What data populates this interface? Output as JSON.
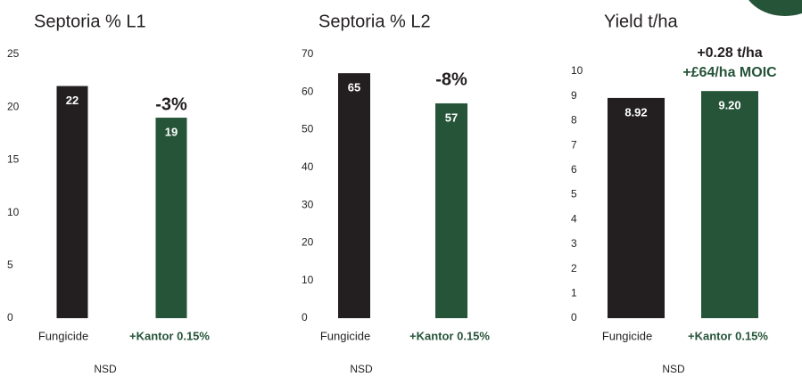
{
  "chart_data": [
    {
      "type": "bar",
      "title": "Septoria % L1",
      "categories": [
        "Fungicide",
        "+Kantor 0.15%"
      ],
      "values": [
        22,
        19
      ],
      "colors": [
        "#231f20",
        "#265439"
      ],
      "ylim": [
        0,
        25
      ],
      "yticks": [
        0,
        5,
        10,
        15,
        20,
        25
      ],
      "annotations": [
        "-3%"
      ],
      "footnote": "NSD"
    },
    {
      "type": "bar",
      "title": "Septoria % L2",
      "categories": [
        "Fungicide",
        "+Kantor 0.15%"
      ],
      "values": [
        65,
        57
      ],
      "colors": [
        "#231f20",
        "#265439"
      ],
      "ylim": [
        0,
        70
      ],
      "yticks": [
        0,
        10,
        20,
        30,
        40,
        50,
        60,
        70
      ],
      "annotations": [
        "-8%"
      ],
      "footnote": "NSD"
    },
    {
      "type": "bar",
      "title": "Yield t/ha",
      "categories": [
        "Fungicide",
        "+Kantor 0.15%"
      ],
      "values": [
        8.92,
        9.2
      ],
      "value_labels": [
        "8.92",
        "9.20"
      ],
      "colors": [
        "#231f20",
        "#265439"
      ],
      "ylim": [
        0,
        10
      ],
      "yticks": [
        0,
        1,
        2,
        3,
        4,
        5,
        6,
        7,
        8,
        9,
        10
      ],
      "annotations": [
        "+0.28 t/ha",
        "+£64/ha MOIC"
      ],
      "footnote": "NSD"
    }
  ]
}
